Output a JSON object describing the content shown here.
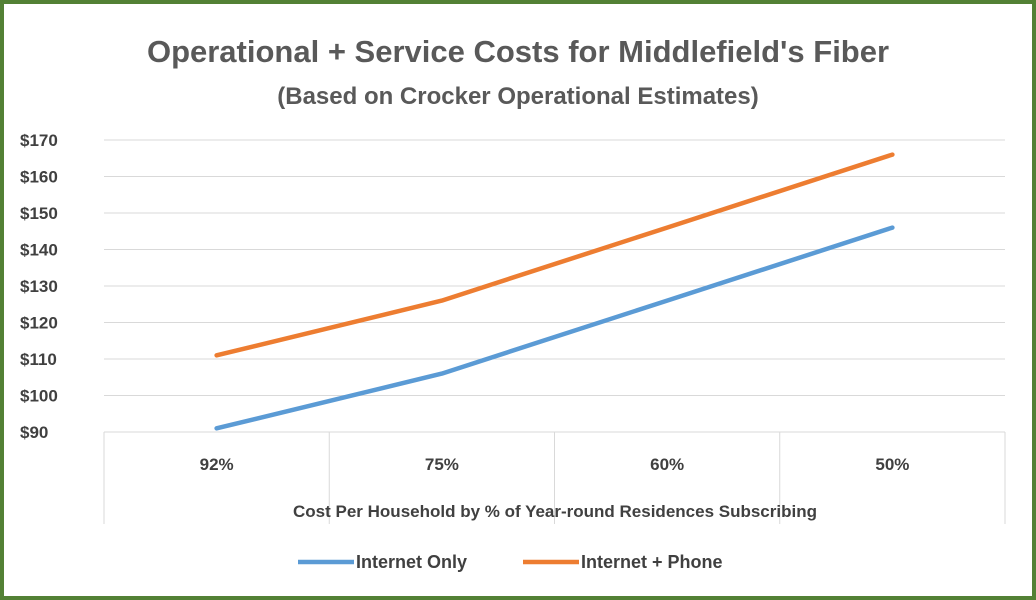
{
  "chart_data": {
    "type": "line",
    "title": "Operational + Service Costs for Middlefield's Fiber",
    "subtitle": "(Based on Crocker Operational Estimates)",
    "categories": [
      "92%",
      "75%",
      "60%",
      "50%"
    ],
    "xlabel": "Cost Per Household by % of Year-round Residences Subscribing",
    "ylabel": "",
    "ylim": [
      90,
      170
    ],
    "yticks": [
      90,
      100,
      110,
      120,
      130,
      140,
      150,
      160,
      170
    ],
    "ytick_labels": [
      "$90",
      "$100",
      "$110",
      "$120",
      "$130",
      "$140",
      "$150",
      "$160",
      "$170"
    ],
    "grid": true,
    "legend_position": "bottom",
    "series": [
      {
        "name": "Internet Only",
        "color": "#5B9BD5",
        "values": [
          91,
          106,
          126,
          146
        ]
      },
      {
        "name": "Internet + Phone",
        "color": "#ED7D31",
        "values": [
          111,
          126,
          146,
          166
        ]
      }
    ]
  },
  "colors": {
    "frame_border": "#538135",
    "gridline": "#D9D9D9",
    "text": "#404040",
    "title": "#595959"
  }
}
